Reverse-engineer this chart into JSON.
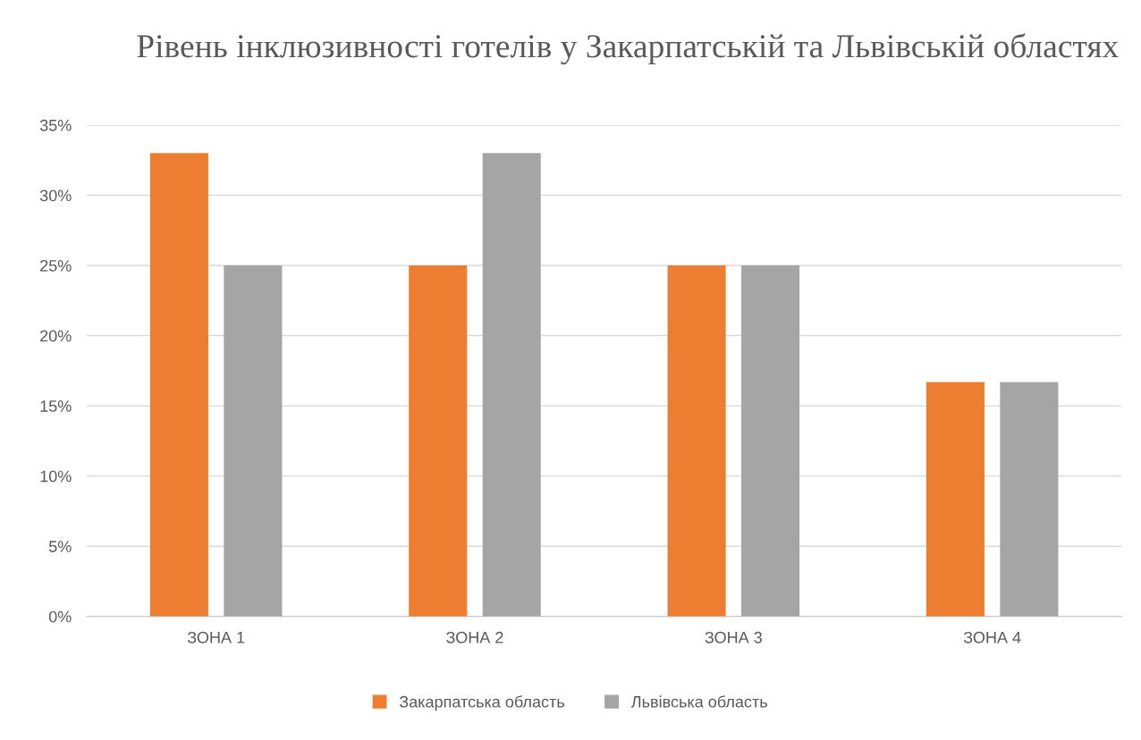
{
  "chart_data": {
    "type": "bar",
    "title": "Рівень інклюзивності готелів у Закарпатській та Львівській областях",
    "categories": [
      "ЗОНА 1",
      "ЗОНА 2",
      "ЗОНА 3",
      "ЗОНА 4"
    ],
    "series": [
      {
        "name": "Закарпатська область",
        "color": "#ed7d31",
        "values": [
          33,
          25,
          25,
          16.7
        ]
      },
      {
        "name": "Львівська область",
        "color": "#a5a5a5",
        "values": [
          25,
          33,
          25,
          16.7
        ]
      }
    ],
    "ylim": [
      0,
      35
    ],
    "yticks": [
      {
        "value": 0,
        "label": "0%"
      },
      {
        "value": 5,
        "label": "5%"
      },
      {
        "value": 10,
        "label": "10%"
      },
      {
        "value": 15,
        "label": "15%"
      },
      {
        "value": 20,
        "label": "20%"
      },
      {
        "value": 25,
        "label": "25%"
      },
      {
        "value": 30,
        "label": "30%"
      },
      {
        "value": 35,
        "label": "35%"
      }
    ],
    "grid": "y",
    "legend": "bottom"
  }
}
